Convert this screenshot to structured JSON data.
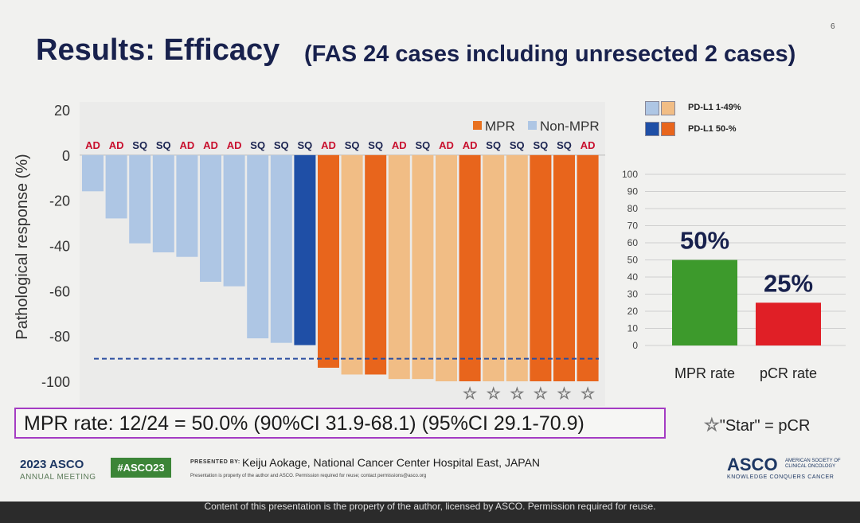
{
  "slide": {
    "page_number": "6",
    "title": "Results: Efficacy",
    "subtitle": "(FAS 24 cases including unresected 2 cases)"
  },
  "chart_data": [
    {
      "type": "bar",
      "variant": "waterfall",
      "ylabel": "Pathological response (%)",
      "ylim": [
        -100,
        20
      ],
      "yticks": [
        "20",
        "0",
        "-20",
        "-40",
        "-60",
        "-80",
        "-100"
      ],
      "reference_line": -90,
      "legend": [
        {
          "label": "MPR",
          "color": "#e8711f"
        },
        {
          "label": "Non-MPR",
          "color": "#aec6e4"
        }
      ],
      "categories": [
        "AD",
        "AD",
        "SQ",
        "SQ",
        "AD",
        "AD",
        "AD",
        "SQ",
        "SQ",
        "SQ",
        "AD",
        "SQ",
        "SQ",
        "AD",
        "SQ",
        "AD",
        "AD",
        "SQ",
        "SQ",
        "SQ",
        "SQ",
        "AD"
      ],
      "values": [
        -16,
        -28,
        -39,
        -43,
        -45,
        -56,
        -58,
        -81,
        -83,
        -84,
        -94,
        -97,
        -97,
        -99,
        -99,
        -100,
        -100,
        -100,
        -100,
        -100,
        -100,
        -100
      ],
      "groups": [
        "non-mpr-low",
        "non-mpr-low",
        "non-mpr-low",
        "non-mpr-low",
        "non-mpr-low",
        "non-mpr-low",
        "non-mpr-low",
        "non-mpr-low",
        "non-mpr-low",
        "non-mpr-high",
        "mpr-high",
        "mpr-low",
        "mpr-high",
        "mpr-low",
        "mpr-low",
        "mpr-low",
        "mpr-high",
        "mpr-low",
        "mpr-low",
        "mpr-high",
        "mpr-high",
        "mpr-high"
      ],
      "pcr": [
        false,
        false,
        false,
        false,
        false,
        false,
        false,
        false,
        false,
        false,
        false,
        false,
        false,
        false,
        false,
        false,
        true,
        true,
        true,
        true,
        true,
        true
      ],
      "colors": {
        "non-mpr-low": "#aec6e4",
        "non-mpr-high": "#1f4fa6",
        "mpr-low": "#f1bd85",
        "mpr-high": "#e8651c",
        "ad_label": "#c8102e",
        "sq_label": "#1b2451"
      }
    },
    {
      "type": "bar",
      "ylim": [
        0,
        100
      ],
      "yticks": [
        "100",
        "90",
        "80",
        "70",
        "60",
        "50",
        "40",
        "30",
        "20",
        "10",
        "0"
      ],
      "categories": [
        "MPR rate",
        "pCR rate"
      ],
      "values": [
        50,
        25
      ],
      "data_labels": [
        "50%",
        "25%"
      ],
      "colors": [
        "#3d9a2c",
        "#e01f26"
      ]
    }
  ],
  "pdl1_legend": [
    {
      "label": "PD-L1 1-49%",
      "colors": [
        "#aec6e4",
        "#f1bd85"
      ]
    },
    {
      "label": "PD-L1 50-%",
      "colors": [
        "#1f4fa6",
        "#e8651c"
      ]
    }
  ],
  "mpr_summary": "MPR rate: 12/24 = 50.0% (90%CI 31.9-68.1) (95%CI 29.1-70.9)",
  "star_note": {
    "star": "☆",
    "text": "\"Star\" = pCR"
  },
  "footer": {
    "asco_year": "2023 ASCO",
    "annual_meeting": "ANNUAL MEETING",
    "hashtag": "#ASCO23",
    "presented_by": "PRESENTED BY:",
    "presenter": "Keiju Aokage, National Cancer Center Hospital East, JAPAN",
    "small_notice": "Presentation is property of the author and ASCO. Permission required for reuse; contact permissions@asco.org",
    "asco_logo": "ASCO",
    "asco_society": "AMERICAN SOCIETY OF CLINICAL ONCOLOGY",
    "tagline": "KNOWLEDGE CONQUERS CANCER",
    "bottom_notice": "Content of this presentation is the property of the author, licensed by ASCO. Permission required for reuse."
  }
}
